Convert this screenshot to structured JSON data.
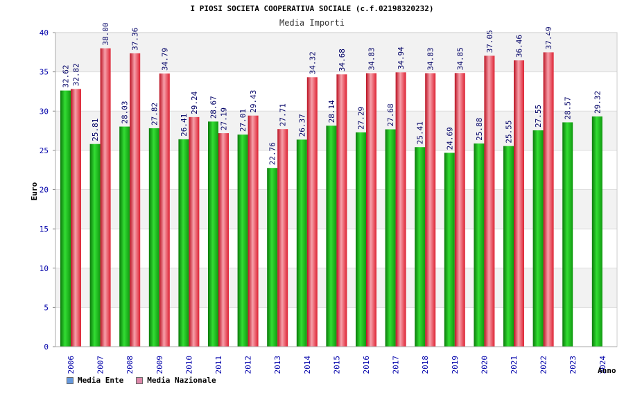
{
  "chart_data": {
    "type": "bar",
    "title": "I PIOSI SOCIETA COOPERATIVA SOCIALE (c.f.02198320232)",
    "subtitle": "Media Importi",
    "xlabel": "Anno",
    "ylabel": "Euro",
    "ylim": [
      0,
      40
    ],
    "yticks": [
      "0",
      "5",
      "10",
      "15",
      "20",
      "25",
      "30",
      "35",
      "40"
    ],
    "categories": [
      "2006",
      "2007",
      "2008",
      "2009",
      "2010",
      "2011",
      "2012",
      "2013",
      "2014",
      "2015",
      "2016",
      "2017",
      "2018",
      "2019",
      "2020",
      "2021",
      "2022",
      "2023",
      "2024"
    ],
    "series": [
      {
        "name": "Media Ente",
        "color": "#11aa11",
        "legend_color": "#6699dd",
        "values": [
          32.62,
          25.81,
          28.03,
          27.82,
          26.41,
          28.67,
          27.01,
          22.76,
          26.37,
          28.14,
          27.29,
          27.68,
          25.41,
          24.69,
          25.88,
          25.55,
          27.55,
          28.57,
          29.32
        ],
        "labels": [
          "32.62",
          "25.81",
          "28.03",
          "27.82",
          "26.41",
          "28.67",
          "27.01",
          "22.76",
          "26.37",
          "28.14",
          "27.29",
          "27.68",
          "25.41",
          "24.69",
          "25.88",
          "25.55",
          "27.55",
          "28.57",
          "29.32"
        ]
      },
      {
        "name": "Media Nazionale",
        "color": "#ee2233",
        "legend_color": "#dd88aa",
        "values": [
          32.82,
          38.0,
          37.36,
          34.79,
          29.24,
          27.19,
          29.43,
          27.71,
          34.32,
          34.68,
          34.83,
          34.94,
          34.83,
          34.85,
          37.05,
          36.46,
          37.49,
          null,
          null
        ],
        "labels": [
          "32.82",
          "38.00",
          "37.36",
          "34.79",
          "29.24",
          "27.19",
          "29.43",
          "27.71",
          "34.32",
          "34.68",
          "34.83",
          "34.94",
          "34.83",
          "34.85",
          "37.05",
          "36.46",
          "37.49",
          "",
          ""
        ]
      }
    ],
    "colors": {
      "band": "#f2f2f2",
      "grid": "#dddddd",
      "axis_text": "#0000aa",
      "value_text": "#000066"
    }
  }
}
